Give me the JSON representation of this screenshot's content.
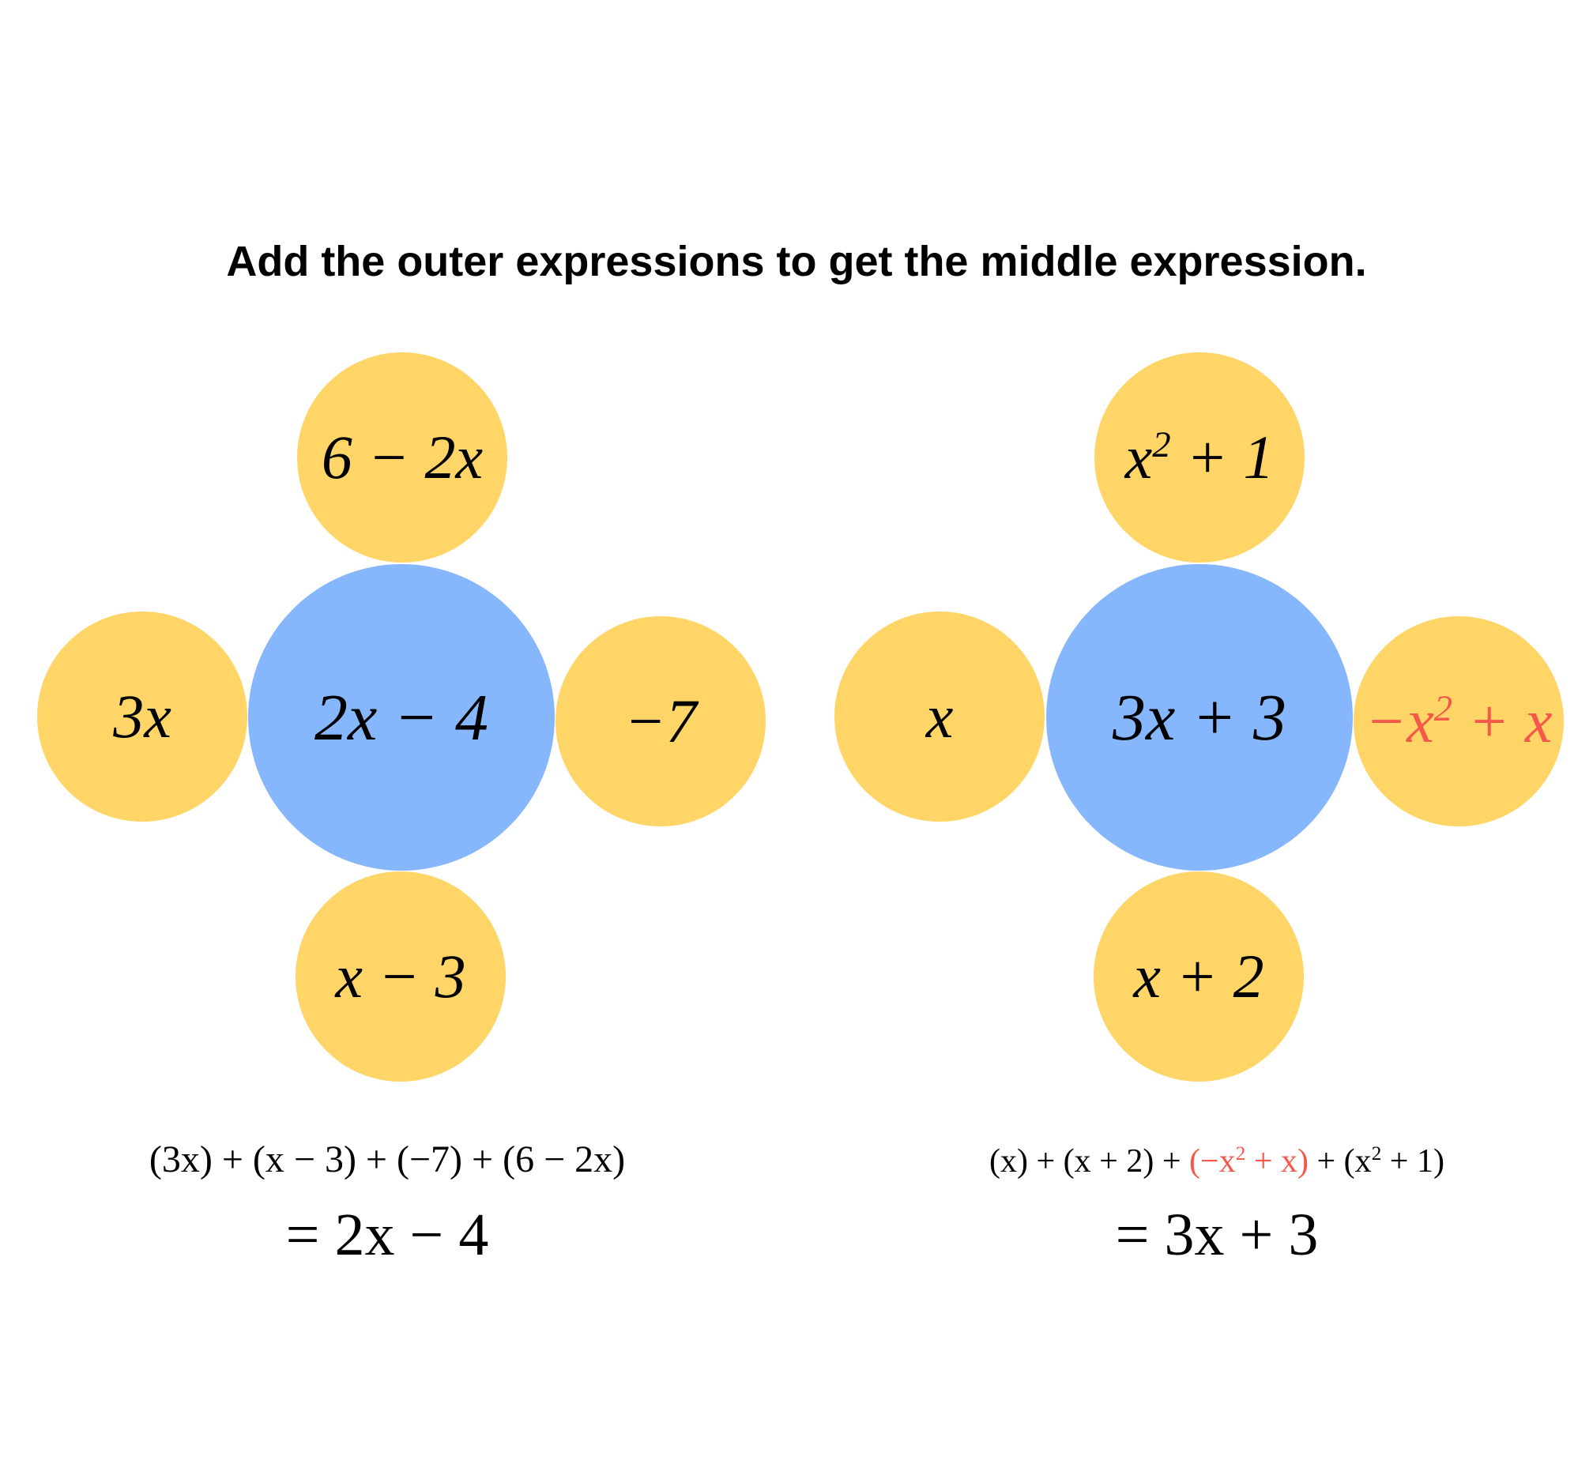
{
  "title": "Add the outer expressions to get the middle expression.",
  "colors": {
    "outer": "#FED566",
    "center": "#86B6FC",
    "highlight": "#F5584A"
  },
  "left": {
    "center": "2x − 4",
    "top": "6 − 2x",
    "left": "3x",
    "right": "−7",
    "bottom": "x − 3",
    "sum": "(3x) + (x − 3) + (−7) + (6 − 2x)",
    "result": "= 2x − 4"
  },
  "right": {
    "center": "3x + 3",
    "top_base": "x",
    "top_exp": "2",
    "top_rest": " + 1",
    "left": "x",
    "right_a": "−x",
    "right_exp": "2",
    "right_b": " + x",
    "bottom": "x + 2",
    "sum_a": "(x) + (x + 2) + ",
    "sum_red_a": "(−x",
    "sum_red_exp": "2",
    "sum_red_b": " + x)",
    "sum_b": " + (x",
    "sum_b_exp": "2",
    "sum_c": " + 1)",
    "result": "= 3x + 3"
  }
}
